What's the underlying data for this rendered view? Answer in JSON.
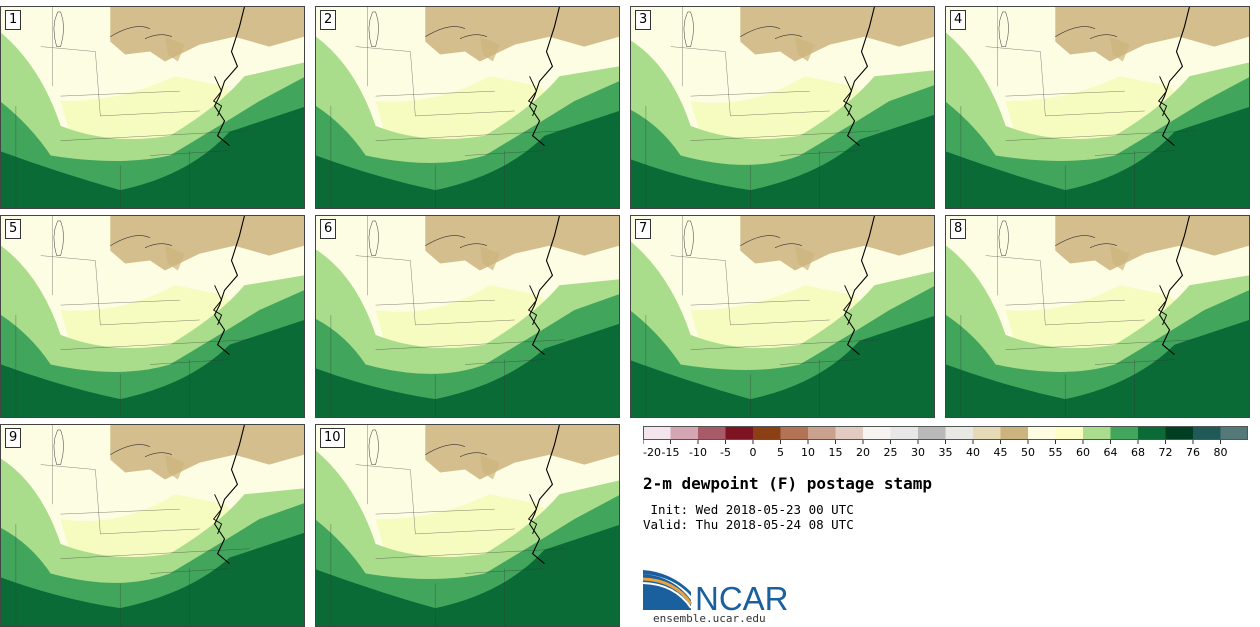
{
  "panels": [
    "1",
    "2",
    "3",
    "4",
    "5",
    "6",
    "7",
    "8",
    "9",
    "10"
  ],
  "colorbar": {
    "ticks": [
      "-20",
      "-15",
      "-10",
      "-5",
      "0",
      "5",
      "10",
      "15",
      "20",
      "25",
      "30",
      "35",
      "40",
      "45",
      "50",
      "55",
      "60",
      "64",
      "68",
      "72",
      "76",
      "80"
    ],
    "colors": [
      "#f4e4ec",
      "#d4a6b4",
      "#a85a68",
      "#7e1322",
      "#8b3f12",
      "#b27455",
      "#caa08e",
      "#e2cbc0",
      "#f6f3f1",
      "#e7e7e7",
      "#b9b9b9",
      "#e8e8e4",
      "#e6d9b5",
      "#cdb37e",
      "#fdfce0",
      "#fbfdc4",
      "#a9dc8b",
      "#42a55c",
      "#0b6b37",
      "#003f21",
      "#1f5a59",
      "#557879"
    ]
  },
  "title": "2-m dewpoint (F) postage stamp",
  "init": " Init: Wed 2018-05-23 00 UTC",
  "valid": "Valid: Thu 2018-05-24 08 UTC",
  "logo": {
    "text": "NCAR",
    "url": "ensemble.ucar.edu",
    "blue": "#1a5f9e",
    "orange": "#e8a33c"
  },
  "map_colors": {
    "tan": "#cdb37e",
    "pale": "#fdfde4",
    "yellow": "#f6fbc0",
    "light_green": "#a9dc8b",
    "green": "#42a55c",
    "dark_green": "#0b6b37"
  }
}
